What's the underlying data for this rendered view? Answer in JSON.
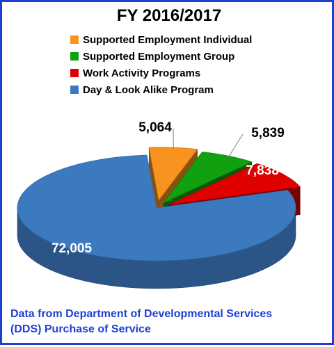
{
  "chart_data": {
    "type": "pie",
    "title": "FY 2016/2017",
    "categories": [
      "Supported Employment Individual",
      "Supported Employment Group",
      "Work Activity Programs",
      "Day & Look Alike Program"
    ],
    "values": [
      5064,
      5839,
      7838,
      72005
    ],
    "value_labels": [
      "5,064",
      "5,839",
      "7,838",
      "72,005"
    ],
    "colors": [
      "#f7931e",
      "#10a010",
      "#e00000",
      "#3c7ac0"
    ],
    "legend_position": "top"
  },
  "footer": {
    "line1": "Data from Department of Developmental Services",
    "line2": "(DDS) Purchase of Service"
  },
  "style": {
    "border_color": "#1f3fd1"
  }
}
